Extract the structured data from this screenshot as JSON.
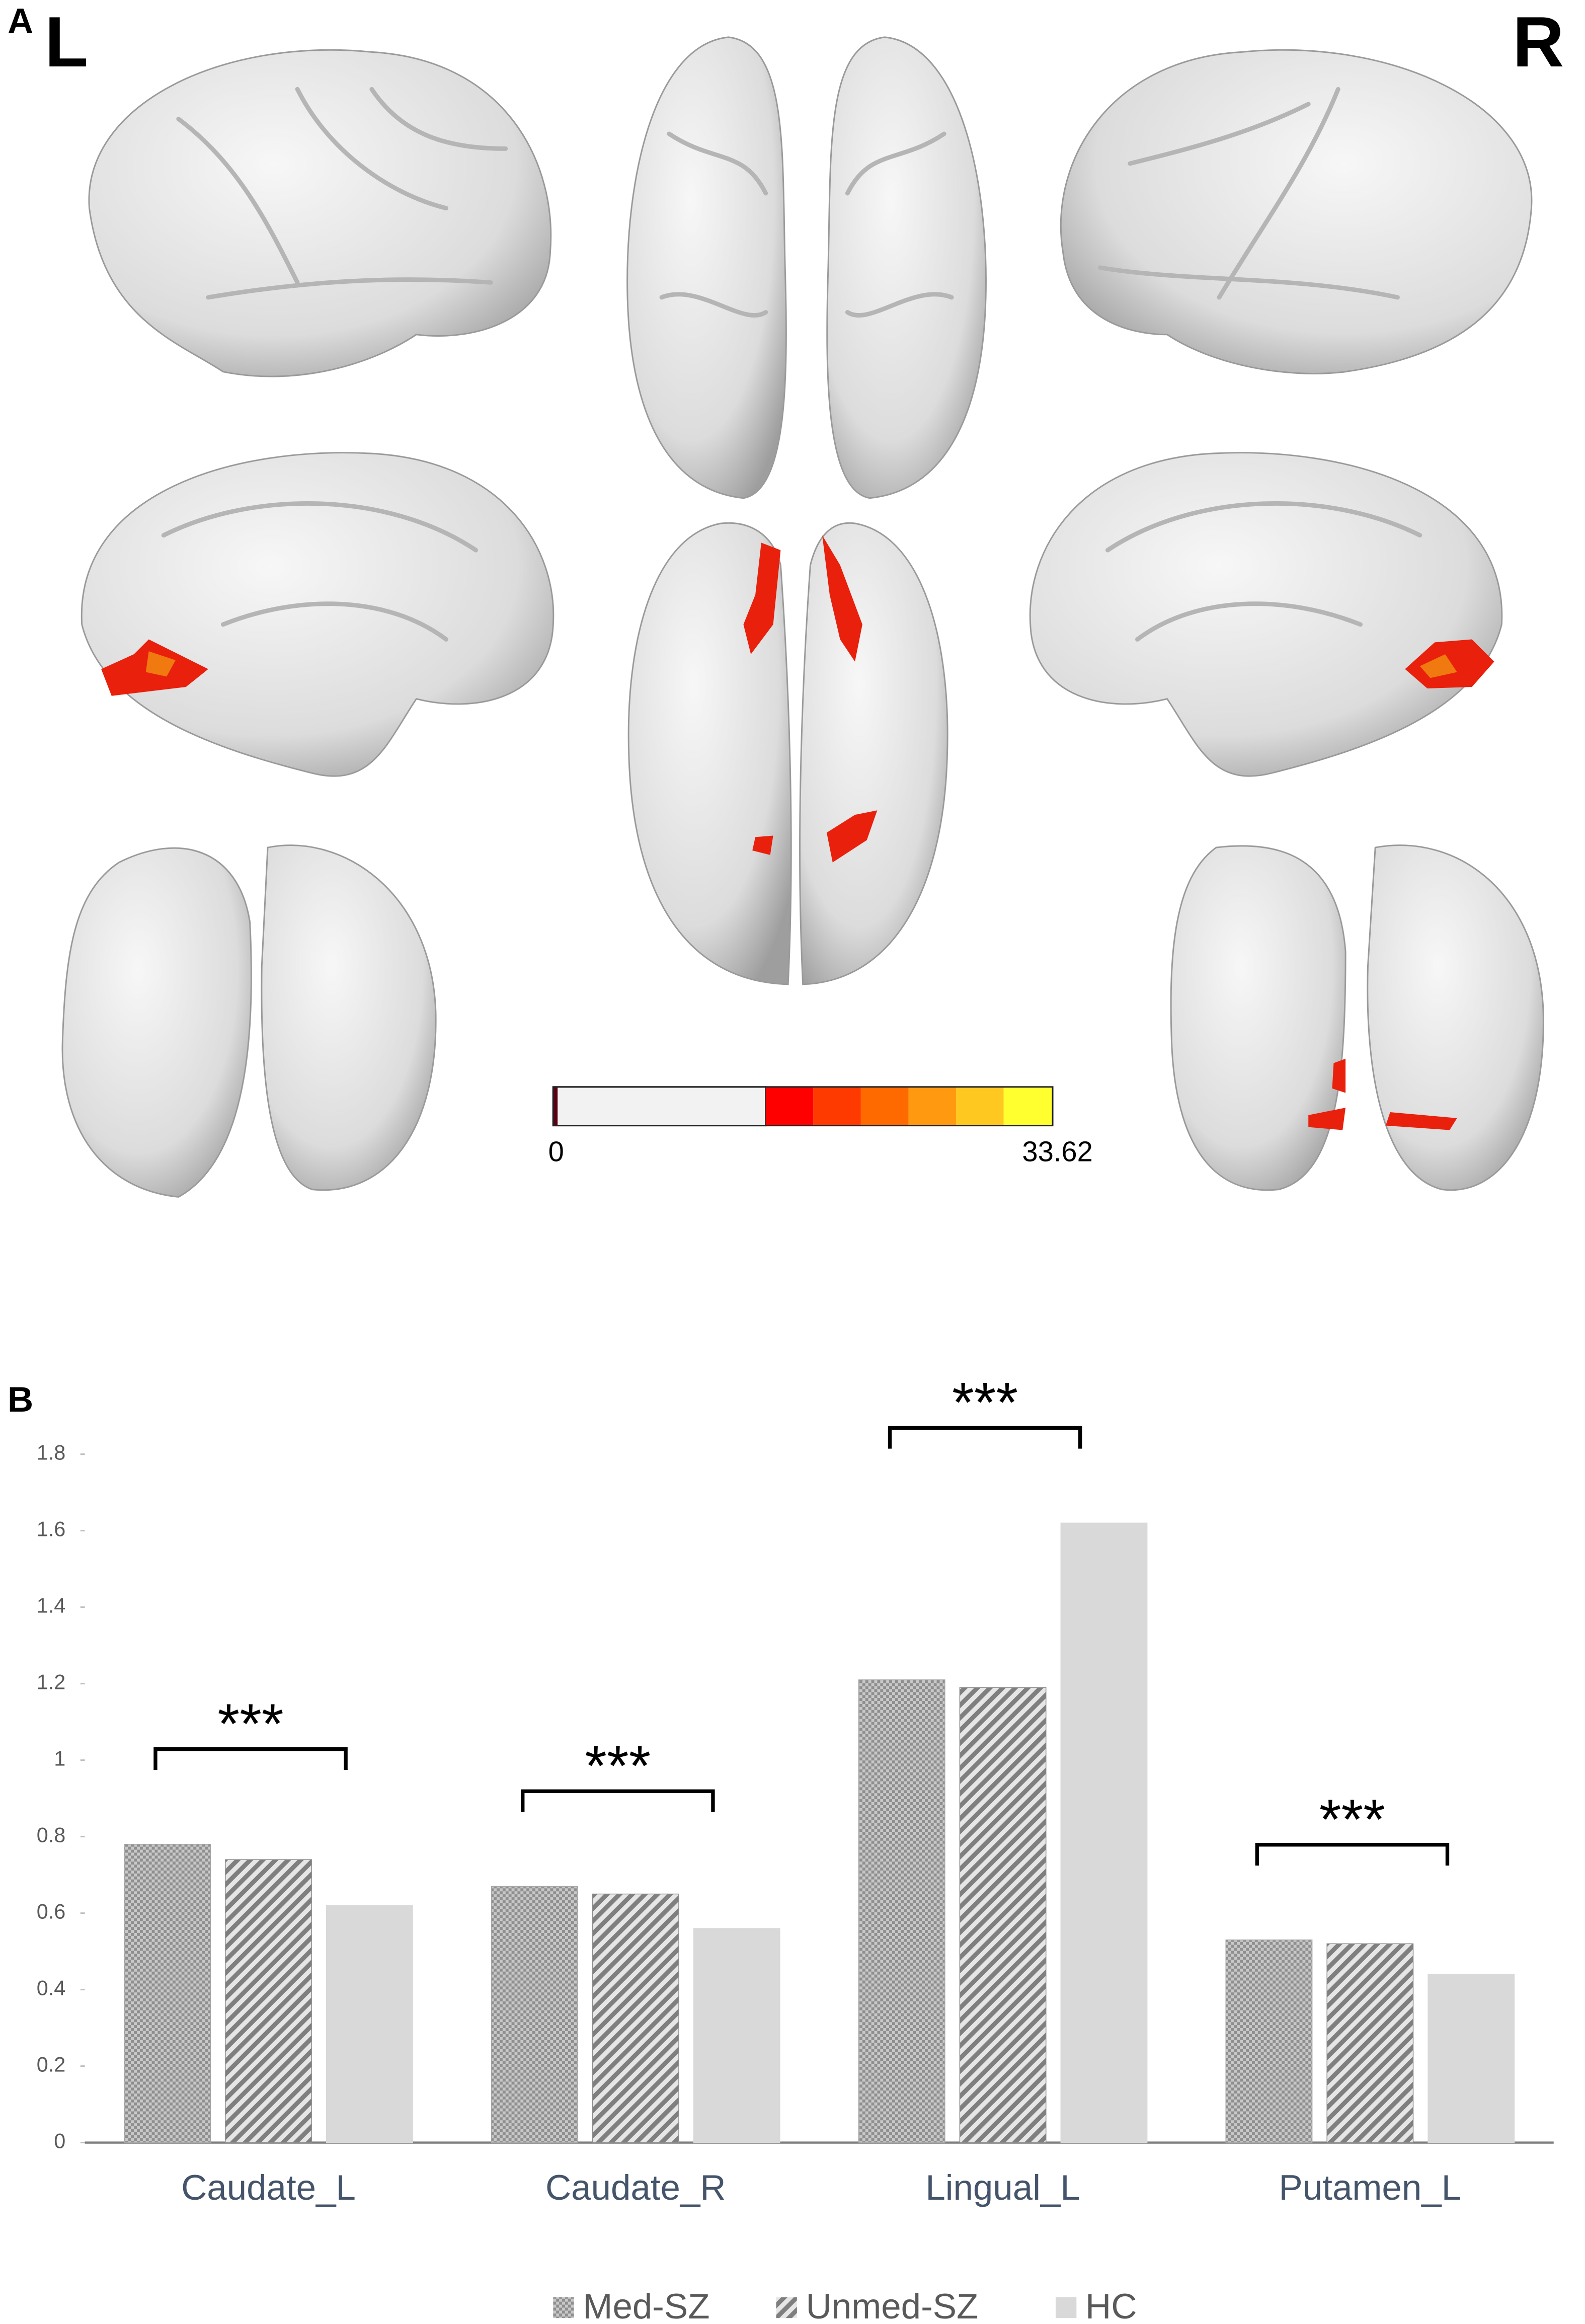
{
  "brain_panel": {
    "label": "A",
    "left_label": "L",
    "right_label": "R",
    "colorbar": {
      "min": 0,
      "max": 33.62
    }
  },
  "chart_data": {
    "type": "bar",
    "panel_label": "B",
    "categories": [
      "Caudate_L",
      "Caudate_R",
      "Lingual_L",
      "Putamen_L"
    ],
    "series": [
      {
        "name": "Med-SZ",
        "color": "#a6a6a6",
        "pattern": "dots",
        "values": [
          0.78,
          0.67,
          1.21,
          0.53
        ]
      },
      {
        "name": "Unmed-SZ",
        "color": "#8c8c8c",
        "pattern": "hatch",
        "values": [
          0.74,
          0.65,
          1.19,
          0.52
        ]
      },
      {
        "name": "HC",
        "color": "#d9d9d9",
        "pattern": "solid",
        "values": [
          0.62,
          0.56,
          1.62,
          0.44
        ]
      }
    ],
    "annotations": [
      "***",
      "***",
      "***",
      "***"
    ],
    "ylim": [
      0,
      1.8
    ],
    "yticks": [
      0,
      0.2,
      0.4,
      0.6,
      0.8,
      1,
      1.2,
      1.4,
      1.6,
      1.8
    ],
    "grid": false,
    "legend": "bottom"
  }
}
